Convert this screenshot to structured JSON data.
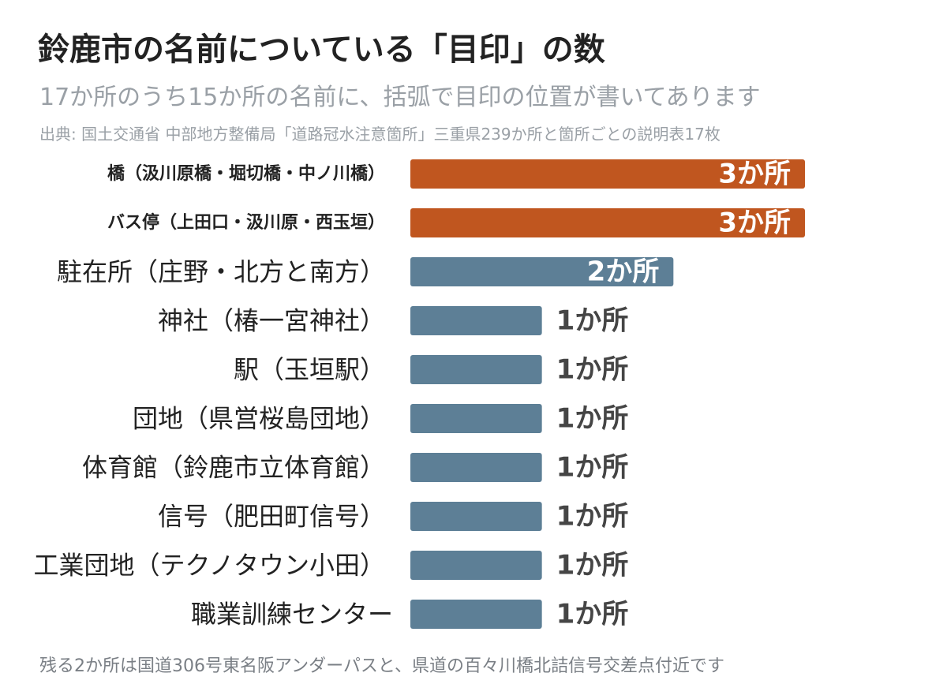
{
  "title": "鈴鹿市の名前についている「目印」の数",
  "subtitle": "17か所のうち15か所の名前に、括弧で目印の位置が書いてあります",
  "source": "出典: 国土交通省 中部地方整備局「道路冠水注意箇所」三重県239か所と箇所ごとの説明表17枚",
  "footnote": "残る2か所は国道306号東名阪アンダーパスと、県道の百々川橋北詰信号交差点付近です",
  "colors": {
    "highlight": "#c0561f",
    "bar": "#5d7f96",
    "label": "#222222",
    "value_outside": "#454545",
    "value_inside": "#ffffff"
  },
  "chart_data": {
    "type": "bar",
    "orientation": "horizontal",
    "categories": [
      "橋（汲川原橋・堀切橋・中ノ川橋）",
      "バス停（上田口・汲川原・西玉垣）",
      "駐在所（庄野・北方と南方）",
      "神社（椿一宮神社）",
      "駅（玉垣駅）",
      "団地（県営桜島団地）",
      "体育館（鈴鹿市立体育館）",
      "信号（肥田町信号）",
      "工業団地（テクノタウン小田）",
      "職業訓練センター"
    ],
    "values": [
      3,
      3,
      2,
      1,
      1,
      1,
      1,
      1,
      1,
      1
    ],
    "data_labels": [
      "3か所",
      "3か所",
      "2か所",
      "1か所",
      "1か所",
      "1か所",
      "1か所",
      "1か所",
      "1か所",
      "1か所"
    ],
    "highlighted": [
      true,
      true,
      false,
      false,
      false,
      false,
      false,
      false,
      false,
      false
    ],
    "xlim": [
      0,
      3
    ],
    "grid": false,
    "legend": "none"
  }
}
